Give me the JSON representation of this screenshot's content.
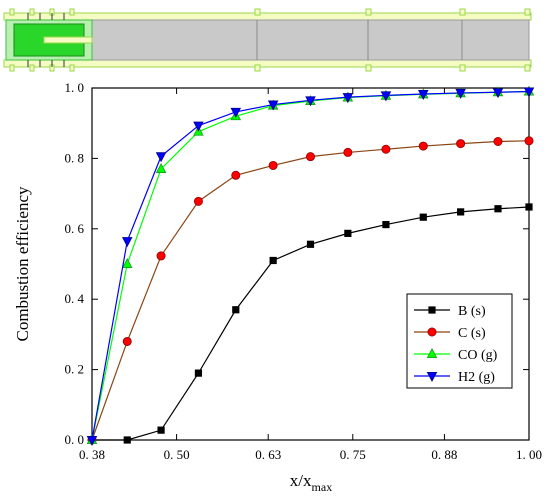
{
  "chart_data": {
    "type": "line",
    "xlabel": "x/x",
    "xlabel_sub": "max",
    "ylabel": "Combustion efficiency",
    "xlim": [
      0.38,
      1.0
    ],
    "ylim": [
      0.0,
      1.0
    ],
    "x_ticks": [
      0.38,
      0.5,
      0.63,
      0.75,
      0.88,
      1.0
    ],
    "x_tick_labels": [
      "0. 38",
      "0. 50",
      "0. 63",
      "0. 75",
      "0. 88",
      "1. 00"
    ],
    "y_ticks": [
      0.0,
      0.2,
      0.4,
      0.6,
      0.8,
      1.0
    ],
    "y_tick_labels": [
      "0. 0",
      "0. 2",
      "0. 4",
      "0. 6",
      "0. 8",
      "1. 0"
    ],
    "grid": false,
    "legend_position": "bottom-right",
    "x": [
      0.38,
      0.445,
      0.498,
      0.552,
      0.608,
      0.665,
      0.718,
      0.774,
      0.827,
      0.882,
      0.935,
      0.99
    ],
    "series": [
      {
        "name": "B (s)",
        "marker": "square",
        "color": "#000000",
        "values": [
          0.0,
          0.0,
          0.028,
          0.19,
          0.37,
          0.51,
          0.556,
          0.587,
          0.612,
          0.633,
          0.648,
          0.657,
          0.662
        ],
        "x": [
          0.38,
          0.43,
          0.478,
          0.531,
          0.584,
          0.637,
          0.69,
          0.743,
          0.797,
          0.85,
          0.903,
          0.956,
          1.0
        ]
      },
      {
        "name": "C (s)",
        "marker": "circle",
        "color": "#ff0000",
        "values": [
          0.0,
          0.28,
          0.523,
          0.678,
          0.752,
          0.78,
          0.805,
          0.817,
          0.826,
          0.835,
          0.842,
          0.848,
          0.85
        ],
        "x": [
          0.38,
          0.43,
          0.478,
          0.531,
          0.584,
          0.637,
          0.69,
          0.743,
          0.797,
          0.85,
          0.903,
          0.956,
          1.0
        ]
      },
      {
        "name": "CO (g)",
        "marker": "triangle-up",
        "color": "#00ff00",
        "values": [
          0.0,
          0.5,
          0.77,
          0.876,
          0.92,
          0.95,
          0.963,
          0.973,
          0.978,
          0.982,
          0.985,
          0.988,
          0.99
        ],
        "x": [
          0.38,
          0.43,
          0.478,
          0.531,
          0.584,
          0.637,
          0.69,
          0.743,
          0.797,
          0.85,
          0.903,
          0.956,
          1.0
        ]
      },
      {
        "name": "H2 (g)",
        "marker": "triangle-down",
        "color": "#0000ff",
        "values": [
          0.0,
          0.565,
          0.806,
          0.893,
          0.932,
          0.953,
          0.965,
          0.974,
          0.979,
          0.983,
          0.986,
          0.988,
          0.99
        ],
        "x": [
          0.38,
          0.43,
          0.478,
          0.531,
          0.584,
          0.637,
          0.69,
          0.743,
          0.797,
          0.85,
          0.903,
          0.956,
          1.0
        ]
      }
    ]
  },
  "schematic": {
    "sections": 4
  }
}
